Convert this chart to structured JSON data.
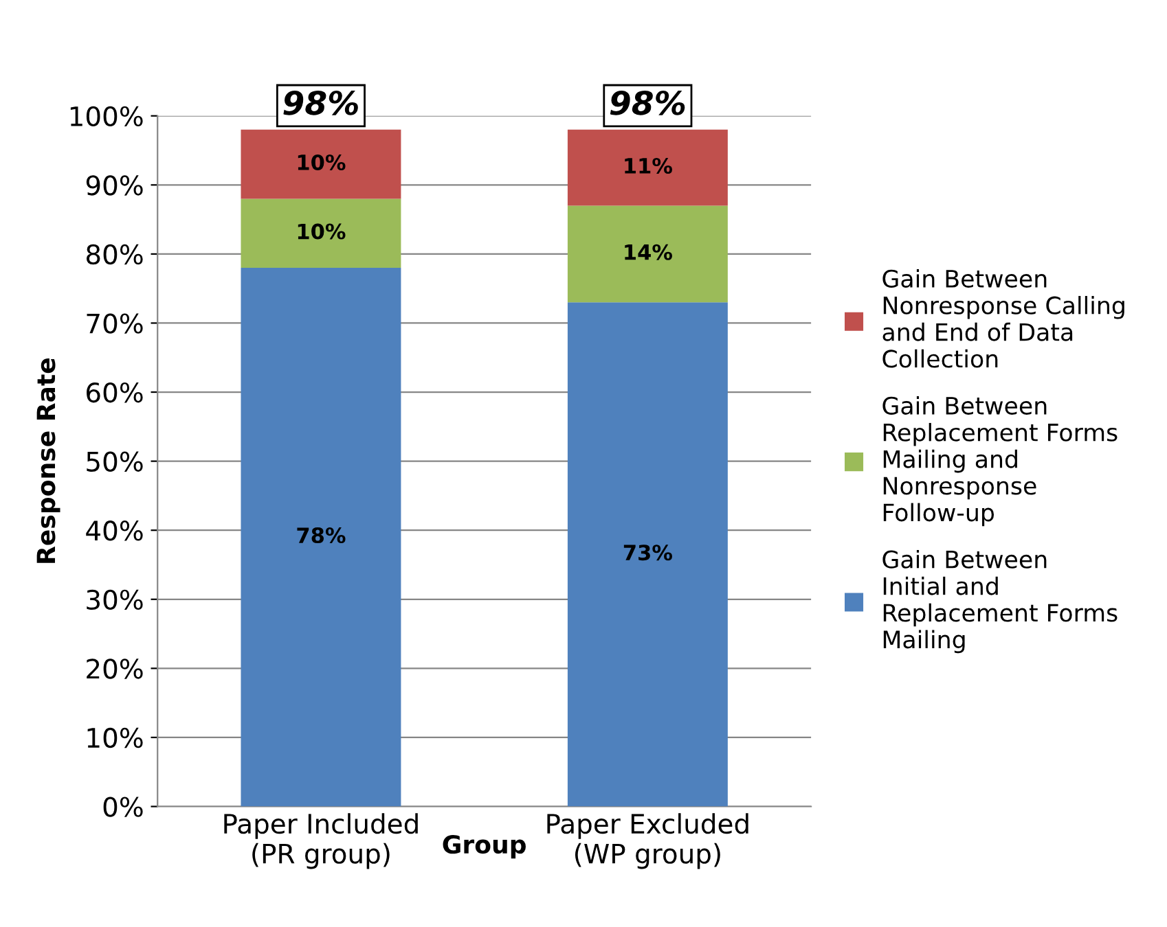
{
  "chart_data": {
    "type": "bar",
    "stacked": true,
    "ylabel": "Response Rate",
    "xlabel": "Group",
    "categories": [
      "Paper Included (PR group)",
      "Paper Excluded (WP group)"
    ],
    "series": [
      {
        "name": "Gain Between Initial and Replacement Forms Mailing",
        "color": "#4f81bd",
        "values": [
          78,
          73
        ],
        "value_labels": [
          "78%",
          "73%"
        ]
      },
      {
        "name": "Gain Between Replacement Forms Mailing and Nonresponse Follow-up",
        "color": "#9bbb59",
        "values": [
          10,
          14
        ],
        "value_labels": [
          "10%",
          "14%"
        ]
      },
      {
        "name": "Gain Between Nonresponse Calling and End of Data Collection",
        "color": "#c0504d",
        "values": [
          10,
          11
        ],
        "value_labels": [
          "10%",
          "11%"
        ]
      }
    ],
    "totals": [
      "98%",
      "98%"
    ],
    "ylim": [
      0,
      100
    ],
    "yticks": [
      {
        "value": 0,
        "label": "0%"
      },
      {
        "value": 10,
        "label": "10%"
      },
      {
        "value": 20,
        "label": "20%"
      },
      {
        "value": 30,
        "label": "30%"
      },
      {
        "value": 40,
        "label": "40%"
      },
      {
        "value": 50,
        "label": "50%"
      },
      {
        "value": 60,
        "label": "60%"
      },
      {
        "value": 70,
        "label": "70%"
      },
      {
        "value": 80,
        "label": "80%"
      },
      {
        "value": 90,
        "label": "90%"
      },
      {
        "value": 100,
        "label": "100%"
      }
    ],
    "grid": "y",
    "legend": "right"
  }
}
